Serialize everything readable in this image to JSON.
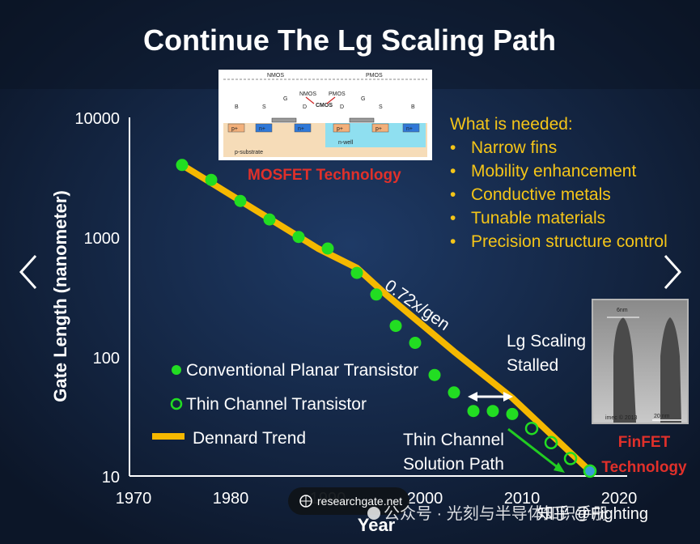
{
  "title": "Continue The Lg Scaling Path",
  "colors": {
    "background": "#0d1a2e",
    "dennard": "#f5b800",
    "planar_dot": "#22dd22",
    "thin_dot_ring": "#22dd22",
    "red_label": "#e0302a",
    "needed_text": "#f5c518",
    "arrow_green": "#22cc22"
  },
  "chart_data": {
    "type": "scatter",
    "title": "Continue The Lg Scaling Path",
    "xlabel": "Year",
    "ylabel": "Gate Length (nanometer)",
    "y_scale": "log",
    "xlim": [
      1970,
      2020
    ],
    "ylim": [
      10,
      10000
    ],
    "x_ticks": [
      "1970",
      "1980",
      "1990",
      "2000",
      "2010",
      "2020"
    ],
    "y_ticks": [
      "10",
      "100",
      "1000",
      "10000"
    ],
    "series": [
      {
        "name": "Conventional Planar Transistor",
        "marker": "filled",
        "x": [
          1975,
          1978,
          1981,
          1984,
          1987,
          1990,
          1993,
          1995,
          1997,
          1999,
          2001,
          2003,
          2005,
          2007,
          2009
        ],
        "y": [
          4000,
          3000,
          2000,
          1400,
          1000,
          800,
          500,
          330,
          180,
          130,
          70,
          50,
          35,
          35,
          33
        ]
      },
      {
        "name": "Thin Channel Transistor",
        "marker": "ring",
        "x": [
          2011,
          2013,
          2015,
          2017
        ],
        "y": [
          25,
          19,
          14,
          11
        ]
      },
      {
        "name": "Dennard Trend",
        "marker": "line",
        "x": [
          1975,
          1989,
          1993,
          1996,
          2003,
          2009,
          2017
        ],
        "y": [
          4000,
          800,
          550,
          330,
          110,
          45,
          11
        ]
      }
    ],
    "annotations": {
      "trend_rate": "0.72x/gen",
      "stalled_line1": "Lg Scaling",
      "stalled_line2": "Stalled",
      "thin_path_line1": "Thin Channel",
      "thin_path_line2": "Solution Path"
    },
    "legend_position": "bottom-left"
  },
  "needed": {
    "heading": "What is needed:",
    "items": [
      "Narrow fins",
      "Mobility enhancement",
      "Conductive metals",
      "Tunable materials",
      "Precision structure control"
    ]
  },
  "mosfet": {
    "caption": "MOSFET Technology",
    "nmos": "NMOS",
    "pmos": "PMOS",
    "cmos": "CMOS",
    "nmos_small": "NMOS",
    "pmos_small": "PMOS",
    "terminals": [
      "B",
      "S",
      "G",
      "D",
      "D",
      "G",
      "S",
      "B"
    ],
    "p_substrate": "p-substrate",
    "n_well": "n-well",
    "wells": [
      "p+",
      "n+",
      "n+",
      "p+",
      "p+",
      "n+"
    ]
  },
  "finfet": {
    "caption_line1": "FinFET",
    "caption_line2": "Technology",
    "width_label": "6nm",
    "imec": "imec © 2013",
    "scale": "20 nm"
  },
  "source_badge": "researchgate.net",
  "watermark": "公众号 · 光刻与半导体知识手册",
  "zhihu": "知乎 @Fighting",
  "nav": {
    "prev": "‹",
    "next": "›"
  }
}
